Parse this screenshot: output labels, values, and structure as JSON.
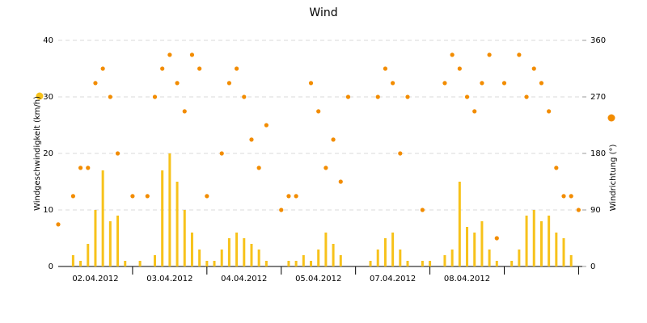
{
  "chart_data": {
    "type": "bar-scatter",
    "title": "Wind",
    "categories": [
      "02.04.2012",
      "03.04.2012",
      "04.04.2012",
      "05.04.2012",
      "07.04.2012",
      "08.04.2012",
      null
    ],
    "x": [
      0.0,
      0.1,
      0.2,
      0.3,
      0.4,
      0.5,
      0.6,
      0.7,
      0.8,
      0.9,
      1.0,
      1.1,
      1.2,
      1.3,
      1.4,
      1.5,
      1.6,
      1.7,
      1.8,
      1.9,
      2.0,
      2.1,
      2.2,
      2.3,
      2.4,
      2.5,
      2.6,
      2.7,
      2.8,
      2.9,
      3.0,
      3.1,
      3.2,
      3.3,
      3.4,
      3.5,
      3.6,
      3.7,
      3.8,
      3.9,
      4.0,
      4.1,
      4.2,
      4.3,
      4.4,
      4.5,
      4.6,
      4.7,
      4.8,
      4.9,
      5.0,
      5.1,
      5.2,
      5.3,
      5.4,
      5.5,
      5.6,
      5.7,
      5.8,
      5.9,
      6.0,
      6.1,
      6.2,
      6.3,
      6.4,
      6.5,
      6.6,
      6.7,
      6.8,
      6.9,
      7.0
    ],
    "xlim": [
      0,
      7.05
    ],
    "series": [
      {
        "name": "Windgeschwindigkeit (km/h)",
        "color": "#f7c21b",
        "kind": "bar",
        "values": [
          0,
          0,
          2,
          1,
          4,
          10,
          17,
          8,
          9,
          1,
          0,
          1,
          0,
          2,
          17,
          20,
          15,
          10,
          6,
          3,
          1,
          1,
          3,
          5,
          6,
          5,
          4,
          3,
          1,
          0,
          0,
          1,
          1,
          2,
          1,
          3,
          6,
          4,
          2,
          0,
          0,
          0,
          1,
          3,
          5,
          6,
          3,
          1,
          0,
          1,
          1,
          0,
          2,
          3,
          15,
          7,
          6,
          8,
          3,
          1,
          0,
          1,
          3,
          9,
          10,
          8,
          9,
          6,
          5,
          2,
          0
        ]
      },
      {
        "name": "Windrichtung (°)",
        "color": "#f28c00",
        "kind": "scatter",
        "axis": "y2",
        "values": [
          67,
          null,
          112,
          157,
          157,
          292,
          315,
          270,
          180,
          null,
          112,
          null,
          112,
          270,
          315,
          337,
          292,
          247,
          337,
          315,
          112,
          null,
          180,
          292,
          315,
          270,
          202,
          157,
          225,
          null,
          90,
          112,
          112,
          null,
          292,
          247,
          157,
          202,
          135,
          270,
          null,
          null,
          null,
          270,
          315,
          292,
          180,
          270,
          null,
          90,
          null,
          null,
          292,
          337,
          315,
          270,
          247,
          292,
          337,
          45,
          292,
          null,
          337,
          270,
          315,
          292,
          247,
          157,
          112,
          112,
          90
        ]
      }
    ],
    "ylim": [
      0,
      40
    ],
    "yticks": [
      0,
      10,
      20,
      30,
      40
    ],
    "y2lim": [
      0,
      360
    ],
    "y2ticks": [
      0,
      90,
      180,
      270,
      360
    ],
    "grid": true
  }
}
